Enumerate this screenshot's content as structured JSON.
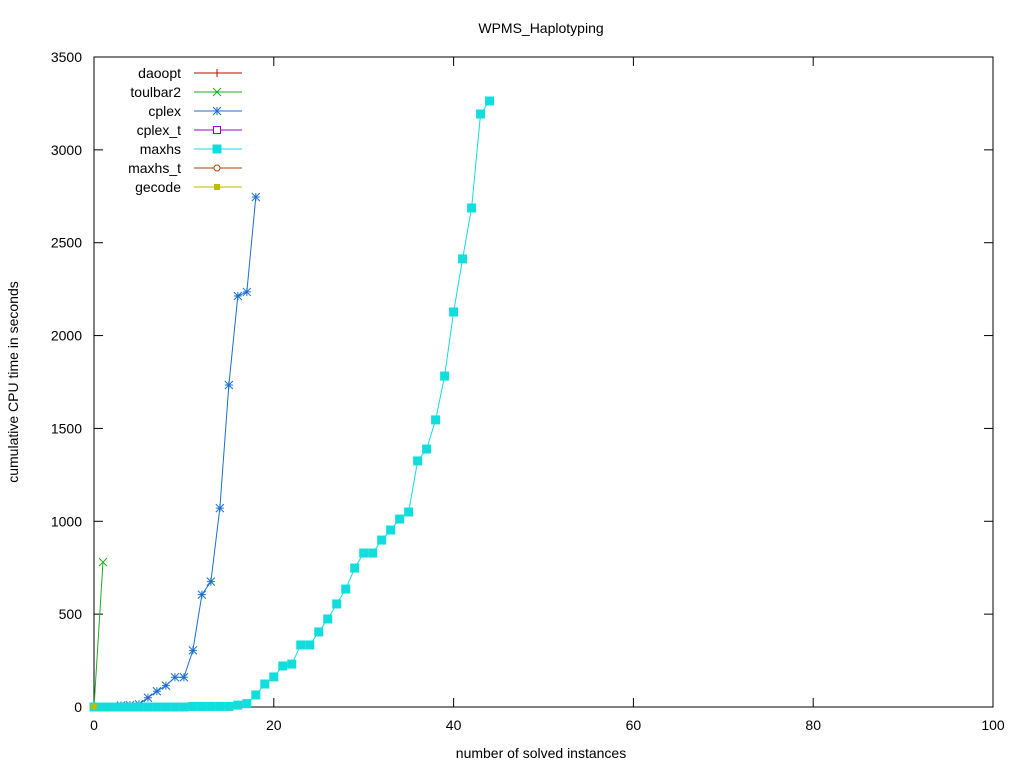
{
  "chart_data": {
    "type": "line",
    "title": "WPMS_Haplotyping",
    "xlabel": "number of solved instances",
    "ylabel": "cumulative CPU time in seconds",
    "xlim": [
      0,
      100
    ],
    "ylim": [
      0,
      3500
    ],
    "xticks": [
      0,
      20,
      40,
      60,
      80,
      100
    ],
    "yticks": [
      0,
      500,
      1000,
      1500,
      2000,
      2500,
      3000,
      3500
    ],
    "grid": false,
    "legend_position": "top-left",
    "series": [
      {
        "name": "daoopt",
        "color": "#cc0000",
        "marker": "plus",
        "x": [],
        "y": []
      },
      {
        "name": "toulbar2",
        "color": "#22aa22",
        "marker": "cross",
        "x": [
          0,
          1
        ],
        "y": [
          0,
          780
        ]
      },
      {
        "name": "cplex",
        "color": "#1a6fd0",
        "marker": "star",
        "x": [
          0,
          1,
          2,
          3,
          4,
          5,
          6,
          7,
          8,
          9,
          10,
          11,
          12,
          13,
          14,
          15,
          16,
          17,
          18
        ],
        "y": [
          0,
          0,
          0,
          8,
          10,
          15,
          50,
          85,
          115,
          160,
          160,
          305,
          605,
          675,
          1071,
          1734,
          2213,
          2235,
          2746
        ]
      },
      {
        "name": "cplex_t",
        "color": "#9900cc",
        "marker": "open-square",
        "x": [],
        "y": []
      },
      {
        "name": "maxhs",
        "color": "#11dddd",
        "marker": "filled-square",
        "x": [
          0,
          1,
          2,
          3,
          4,
          5,
          6,
          7,
          8,
          9,
          10,
          11,
          12,
          13,
          14,
          15,
          16,
          17,
          18,
          19,
          20,
          21,
          22,
          23,
          24,
          25,
          26,
          27,
          28,
          29,
          30,
          31,
          32,
          33,
          34,
          35,
          36,
          37,
          38,
          39,
          40,
          41,
          42,
          43,
          44
        ],
        "y": [
          0,
          0,
          0,
          0,
          0,
          0,
          0,
          0,
          0,
          0,
          0,
          3,
          3,
          3,
          3,
          3,
          10,
          18,
          65,
          124,
          162,
          221,
          231,
          334,
          334,
          404,
          474,
          555,
          635,
          748,
          829,
          829,
          899,
          953,
          1012,
          1050,
          1325,
          1389,
          1546,
          1782,
          2127,
          2413,
          2687,
          3193,
          3263
        ]
      },
      {
        "name": "maxhs_t",
        "color": "#aa4400",
        "marker": "open-circle",
        "x": [],
        "y": []
      },
      {
        "name": "gecode",
        "color": "#bbbb00",
        "marker": "filled-pentagon",
        "x": [
          0
        ],
        "y": [
          0
        ]
      }
    ]
  }
}
